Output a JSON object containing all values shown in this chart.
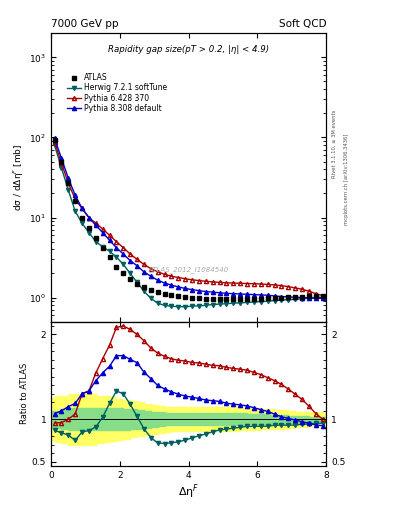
{
  "title_left": "7000 GeV pp",
  "title_right": "Soft QCD",
  "plot_title": "Rapidity gap size(pT > 0.2, |η| < 4.9)",
  "ylabel_main": "dσ / dΔη$^F$ [mb]",
  "ylabel_ratio": "Ratio to ATLAS",
  "xlabel": "Δη$^F$",
  "watermark": "ATLAS_2012_I1084540",
  "right_label_top": "Rivet 3.1.10, ≥ 3M events",
  "right_label_bot": "mcplots.cern.ch [arXiv:1306.3436]",
  "atlas_x": [
    0.1,
    0.3,
    0.5,
    0.7,
    0.9,
    1.1,
    1.3,
    1.5,
    1.7,
    1.9,
    2.1,
    2.3,
    2.5,
    2.7,
    2.9,
    3.1,
    3.3,
    3.5,
    3.7,
    3.9,
    4.1,
    4.3,
    4.5,
    4.7,
    4.9,
    5.1,
    5.3,
    5.5,
    5.7,
    5.9,
    6.1,
    6.3,
    6.5,
    6.7,
    6.9,
    7.1,
    7.3,
    7.5,
    7.7,
    7.9
  ],
  "atlas_y": [
    92,
    50,
    27,
    16,
    10,
    7.5,
    5.5,
    4.2,
    3.2,
    2.4,
    2.0,
    1.7,
    1.5,
    1.35,
    1.25,
    1.18,
    1.12,
    1.08,
    1.05,
    1.02,
    1.0,
    0.98,
    0.97,
    0.96,
    0.95,
    0.95,
    0.95,
    0.95,
    0.95,
    0.96,
    0.97,
    0.98,
    0.99,
    1.0,
    1.01,
    1.02,
    1.03,
    1.04,
    1.05,
    1.06
  ],
  "herwig_x": [
    0.1,
    0.3,
    0.5,
    0.7,
    0.9,
    1.1,
    1.3,
    1.5,
    1.7,
    1.9,
    2.1,
    2.3,
    2.5,
    2.7,
    2.9,
    3.1,
    3.3,
    3.5,
    3.7,
    3.9,
    4.1,
    4.3,
    4.5,
    4.7,
    4.9,
    5.1,
    5.3,
    5.5,
    5.7,
    5.9,
    6.1,
    6.3,
    6.5,
    6.7,
    6.9,
    7.1,
    7.3,
    7.5,
    7.7,
    7.9
  ],
  "herwig_y": [
    80,
    42,
    22,
    12,
    8.5,
    6.5,
    5.0,
    4.3,
    3.8,
    3.2,
    2.6,
    2.0,
    1.55,
    1.2,
    0.98,
    0.85,
    0.8,
    0.78,
    0.77,
    0.77,
    0.78,
    0.79,
    0.8,
    0.82,
    0.83,
    0.84,
    0.85,
    0.86,
    0.87,
    0.88,
    0.89,
    0.9,
    0.92,
    0.93,
    0.94,
    0.95,
    0.97,
    0.98,
    1.0,
    1.01
  ],
  "pythia6_x": [
    0.1,
    0.3,
    0.5,
    0.7,
    0.9,
    1.1,
    1.3,
    1.5,
    1.7,
    1.9,
    2.1,
    2.3,
    2.5,
    2.7,
    2.9,
    3.1,
    3.3,
    3.5,
    3.7,
    3.9,
    4.1,
    4.3,
    4.5,
    4.7,
    4.9,
    5.1,
    5.3,
    5.5,
    5.7,
    5.9,
    6.1,
    6.3,
    6.5,
    6.7,
    6.9,
    7.1,
    7.3,
    7.5,
    7.7,
    7.9
  ],
  "pythia6_y": [
    88,
    48,
    27,
    17,
    13,
    10,
    8.5,
    7.2,
    6.0,
    5.0,
    4.2,
    3.5,
    3.0,
    2.6,
    2.3,
    2.1,
    1.95,
    1.85,
    1.78,
    1.72,
    1.67,
    1.63,
    1.6,
    1.57,
    1.55,
    1.53,
    1.52,
    1.51,
    1.5,
    1.49,
    1.48,
    1.46,
    1.44,
    1.41,
    1.37,
    1.32,
    1.27,
    1.2,
    1.12,
    1.06
  ],
  "pythia8_x": [
    0.1,
    0.3,
    0.5,
    0.7,
    0.9,
    1.1,
    1.3,
    1.5,
    1.7,
    1.9,
    2.1,
    2.3,
    2.5,
    2.7,
    2.9,
    3.1,
    3.3,
    3.5,
    3.7,
    3.9,
    4.1,
    4.3,
    4.5,
    4.7,
    4.9,
    5.1,
    5.3,
    5.5,
    5.7,
    5.9,
    6.1,
    6.3,
    6.5,
    6.7,
    6.9,
    7.1,
    7.3,
    7.5,
    7.7,
    7.9
  ],
  "pythia8_y": [
    98,
    55,
    31,
    19,
    13,
    10,
    8.0,
    6.5,
    5.2,
    4.2,
    3.5,
    2.9,
    2.5,
    2.1,
    1.85,
    1.65,
    1.52,
    1.43,
    1.36,
    1.3,
    1.26,
    1.22,
    1.19,
    1.17,
    1.15,
    1.13,
    1.12,
    1.11,
    1.1,
    1.09,
    1.08,
    1.07,
    1.05,
    1.03,
    1.02,
    1.01,
    1.0,
    0.99,
    0.98,
    0.98
  ],
  "green_band_x": [
    0.0,
    0.2,
    0.4,
    0.6,
    0.8,
    1.0,
    1.2,
    1.4,
    1.6,
    1.8,
    2.0,
    2.2,
    2.4,
    2.6,
    2.8,
    3.0,
    3.2,
    3.4,
    3.6,
    3.8,
    4.0,
    4.2,
    4.4,
    4.6,
    4.8,
    5.0,
    5.2,
    5.4,
    5.6,
    5.8,
    6.0,
    6.2,
    6.4,
    6.6,
    6.8,
    7.0,
    7.2,
    7.4,
    7.6,
    7.8,
    8.0
  ],
  "green_band_lo": [
    0.9,
    0.9,
    0.88,
    0.87,
    0.87,
    0.87,
    0.87,
    0.87,
    0.87,
    0.87,
    0.87,
    0.87,
    0.88,
    0.89,
    0.9,
    0.91,
    0.92,
    0.93,
    0.93,
    0.93,
    0.93,
    0.93,
    0.93,
    0.93,
    0.93,
    0.93,
    0.93,
    0.93,
    0.93,
    0.94,
    0.94,
    0.94,
    0.95,
    0.95,
    0.95,
    0.96,
    0.96,
    0.96,
    0.97,
    0.97,
    0.97
  ],
  "green_band_hi": [
    1.1,
    1.1,
    1.12,
    1.13,
    1.13,
    1.13,
    1.13,
    1.13,
    1.13,
    1.13,
    1.13,
    1.12,
    1.12,
    1.11,
    1.1,
    1.09,
    1.08,
    1.07,
    1.07,
    1.07,
    1.07,
    1.07,
    1.07,
    1.07,
    1.07,
    1.07,
    1.07,
    1.07,
    1.07,
    1.06,
    1.06,
    1.06,
    1.05,
    1.05,
    1.05,
    1.04,
    1.04,
    1.04,
    1.03,
    1.03,
    1.03
  ],
  "yellow_band_x": [
    0.0,
    0.2,
    0.4,
    0.6,
    0.8,
    1.0,
    1.2,
    1.4,
    1.6,
    1.8,
    2.0,
    2.2,
    2.4,
    2.6,
    2.8,
    3.0,
    3.2,
    3.4,
    3.6,
    3.8,
    4.0,
    4.2,
    4.4,
    4.6,
    4.8,
    5.0,
    5.2,
    5.4,
    5.6,
    5.8,
    6.0,
    6.2,
    6.4,
    6.6,
    6.8,
    7.0,
    7.2,
    7.4,
    7.6,
    7.8,
    8.0
  ],
  "yellow_band_lo": [
    0.75,
    0.73,
    0.72,
    0.7,
    0.7,
    0.7,
    0.7,
    0.72,
    0.73,
    0.74,
    0.76,
    0.77,
    0.79,
    0.8,
    0.82,
    0.83,
    0.84,
    0.85,
    0.86,
    0.86,
    0.86,
    0.86,
    0.86,
    0.86,
    0.86,
    0.86,
    0.86,
    0.86,
    0.87,
    0.87,
    0.87,
    0.88,
    0.88,
    0.89,
    0.89,
    0.9,
    0.91,
    0.91,
    0.92,
    0.92,
    0.93
  ],
  "yellow_band_hi": [
    1.25,
    1.27,
    1.28,
    1.3,
    1.3,
    1.3,
    1.3,
    1.28,
    1.27,
    1.26,
    1.24,
    1.23,
    1.21,
    1.2,
    1.18,
    1.17,
    1.16,
    1.15,
    1.14,
    1.14,
    1.14,
    1.14,
    1.14,
    1.14,
    1.14,
    1.14,
    1.14,
    1.14,
    1.13,
    1.13,
    1.13,
    1.12,
    1.12,
    1.11,
    1.11,
    1.1,
    1.09,
    1.09,
    1.08,
    1.08,
    1.07
  ],
  "atlas_color": "#000000",
  "herwig_color": "#006060",
  "pythia6_color": "#aa0000",
  "pythia8_color": "#0000cc",
  "green_band_color": "#88dd88",
  "yellow_band_color": "#ffff66",
  "legend_labels": [
    "ATLAS",
    "Herwig 7.2.1 softTune",
    "Pythia 6.428 370",
    "Pythia 8.308 default"
  ],
  "ylim_main": [
    0.5,
    2000
  ],
  "ylim_ratio": [
    0.45,
    2.15
  ],
  "xlim": [
    0,
    8
  ],
  "ratio_yticks": [
    0.5,
    1.0,
    2.0
  ],
  "ratio_yticklabels": [
    "0.5",
    "1",
    "2"
  ]
}
